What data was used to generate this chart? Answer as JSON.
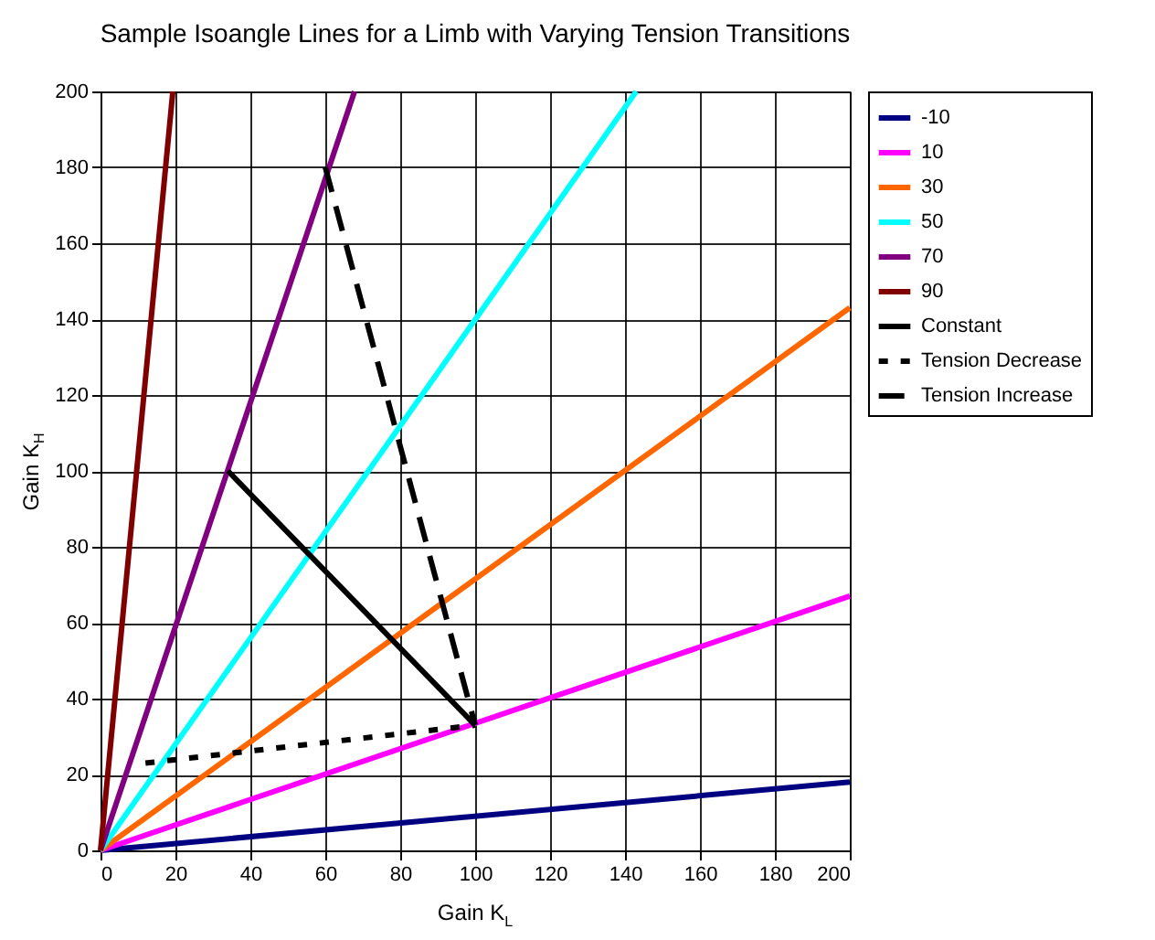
{
  "chart_data": {
    "type": "line",
    "title": "Sample Isoangle Lines for a Limb with Varying Tension Transitions",
    "xlabel": "Gain K$_{L}$",
    "ylabel": "Gain K$_{H}$",
    "xlim": [
      0,
      200
    ],
    "ylim": [
      0,
      200
    ],
    "xticks": [
      0,
      20,
      40,
      60,
      80,
      100,
      120,
      140,
      160,
      180,
      200
    ],
    "yticks": [
      0,
      20,
      40,
      60,
      80,
      100,
      120,
      140,
      160,
      180,
      200
    ],
    "grid": true,
    "legend": "right",
    "series": [
      {
        "name": "-10",
        "color": "#000080",
        "line_style": "solid",
        "x": [
          0,
          200
        ],
        "values": [
          0,
          18
        ]
      },
      {
        "name": "10",
        "color": "#ff00ff",
        "line_style": "solid",
        "x": [
          0,
          200
        ],
        "values": [
          0,
          67
        ]
      },
      {
        "name": "30",
        "color": "#ff6600",
        "line_style": "solid",
        "x": [
          0,
          200
        ],
        "values": [
          0,
          143
        ]
      },
      {
        "name": "50",
        "color": "#00ffff",
        "line_style": "solid",
        "x": [
          0,
          143
        ],
        "values": [
          0,
          200
        ]
      },
      {
        "name": "70",
        "color": "#800080",
        "line_style": "solid",
        "x": [
          0,
          67.8
        ],
        "values": [
          0,
          200
        ]
      },
      {
        "name": "90",
        "color": "#800000",
        "line_style": "solid",
        "x": [
          0,
          19.3
        ],
        "values": [
          0,
          200
        ]
      },
      {
        "name": "Constant",
        "color": "#000000",
        "line_style": "solid",
        "x": [
          34,
          100
        ],
        "values": [
          100,
          33
        ]
      },
      {
        "name": "Tension Decrease",
        "color": "#000000",
        "line_style": "dotted",
        "x": [
          12,
          100
        ],
        "values": [
          23,
          33
        ]
      },
      {
        "name": "Tension Increase",
        "color": "#000000",
        "line_style": "dashed",
        "x": [
          60,
          100
        ],
        "values": [
          180,
          33
        ]
      }
    ]
  }
}
